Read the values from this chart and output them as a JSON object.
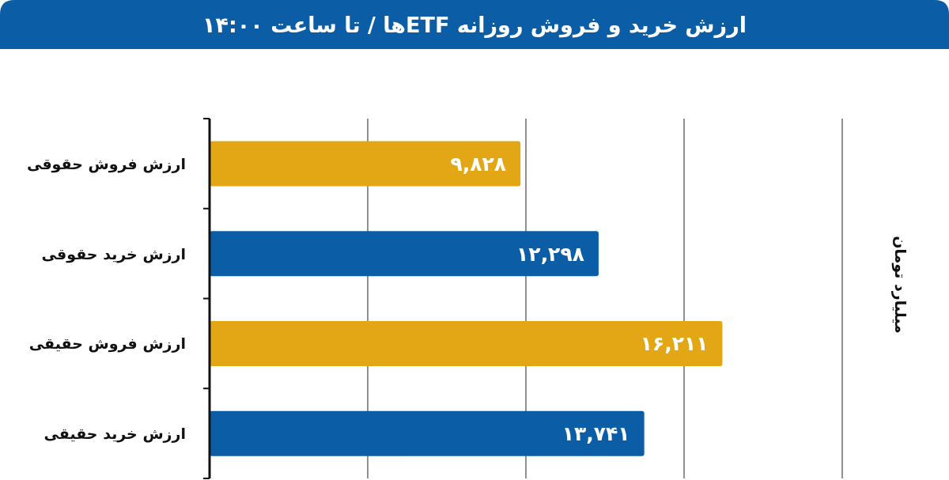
{
  "chart_data": {
    "type": "bar",
    "orientation": "horizontal",
    "title": "ارزش خرید و فروش روزانه ETFها / تا ساعت ۱۴:۰۰",
    "ylabel": "میلیارد تومان",
    "categories": [
      "ارزش فروش حقوقی",
      "ارزش خرید حقوقی",
      "ارزش فروش حقیقی",
      "ارزش خرید حقیقی"
    ],
    "values": [
      9828,
      12298,
      16211,
      13741
    ],
    "colors": [
      "#e3a615",
      "#0b5ea6",
      "#e3a615",
      "#0b5ea6"
    ],
    "value_labels": [
      "۹,۸۲۸",
      "۱۲,۲۹۸",
      "۱۶,۲۱۱",
      "۱۳,۷۴۱"
    ],
    "xlim": [
      0,
      20000
    ],
    "xticks": [
      {
        "value": 5000,
        "label": null
      },
      {
        "value": 10000,
        "label": null
      },
      {
        "value": 15000,
        "label": null
      },
      {
        "value": 20000,
        "label": null
      }
    ],
    "grid": "x"
  }
}
